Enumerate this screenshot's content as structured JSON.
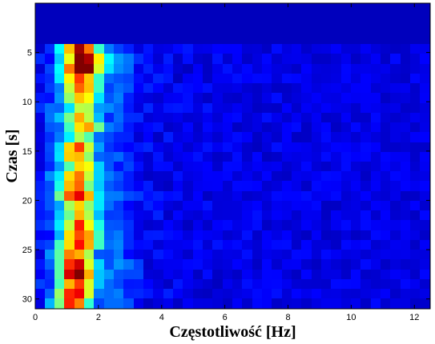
{
  "chart_data": {
    "type": "heatmap",
    "title": "",
    "xlabel": "Częstotliwość [Hz]",
    "ylabel": "Czas [s]",
    "xlim": [
      0,
      12.5
    ],
    "ylim": [
      0,
      31
    ],
    "y_reversed": true,
    "x_ticks": [
      0,
      2,
      4,
      6,
      8,
      10,
      12
    ],
    "y_ticks": [
      5,
      10,
      15,
      20,
      25,
      30
    ],
    "grid": false,
    "legend": "none",
    "colormap": "jet",
    "color_range": [
      0,
      1
    ],
    "x_bins": 40,
    "y_bins": 27,
    "y_start": 4.2,
    "y_end": 31,
    "x_end": 12.5,
    "blank_band": [
      0,
      4.2
    ],
    "blank_value": 0.06,
    "base_value": 0.1,
    "row_intensity": [
      0.78,
      0.88,
      1.0,
      0.74,
      0.66,
      0.62,
      0.42,
      0.5,
      0.56,
      0.4,
      0.62,
      0.58,
      0.52,
      0.66,
      0.6,
      0.8,
      0.56,
      0.58,
      0.66,
      0.7,
      0.78,
      0.62,
      0.84,
      0.88,
      0.7,
      0.8,
      0.68
    ],
    "peak_frequency": [
      1.45,
      1.55,
      1.5,
      1.45,
      1.45,
      1.5,
      1.5,
      1.4,
      1.6,
      1.45,
      1.4,
      1.35,
      1.5,
      1.3,
      1.35,
      1.35,
      1.4,
      1.45,
      1.45,
      1.45,
      1.4,
      1.3,
      1.3,
      1.35,
      1.3,
      1.3,
      1.2
    ]
  }
}
